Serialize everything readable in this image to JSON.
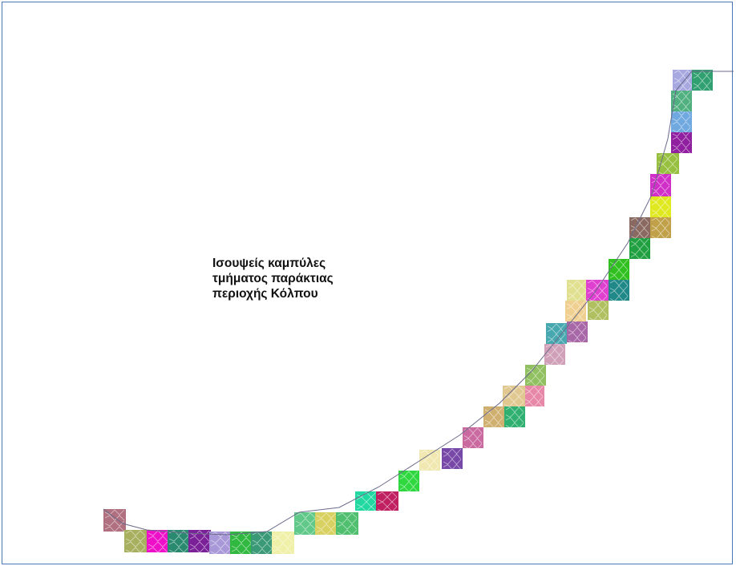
{
  "map": {
    "title_lines": [
      "Ισουψείς καμπύλες",
      "τμήματος παράκτιας",
      "περιοχής Κόλπου"
    ],
    "frame_color": "#4a76b8",
    "tile_colors": [
      "#b07080",
      "#a8b060",
      "#ee10c8",
      "#2a8a70",
      "#7a2098",
      "#a898d8",
      "#30b840",
      "#3a9a78",
      "#f0f0a8",
      "#60c888",
      "#d8d060",
      "#50c070",
      "#20d8a0",
      "#c02060",
      "#30d840",
      "#f0e8b0",
      "#7848a8",
      "#ca6aa0",
      "#d0b070",
      "#30b070",
      "#e888a8",
      "#e0c890",
      "#90c060",
      "#d0a0b8",
      "#48a8b0",
      "#a868a8",
      "#f0d090",
      "#b0c060",
      "#e0e090",
      "#208888",
      "#30c020",
      "#e040d0",
      "#20a040",
      "#c0a048",
      "#e0e820",
      "#8a6a60",
      "#d030c8",
      "#98c040",
      "#9020a0",
      "#70a8e0",
      "#50b080",
      "#a8a8e0",
      "#30a070",
      "#2080d0",
      "#304870",
      "#a8d088",
      "#d08a6a"
    ]
  }
}
